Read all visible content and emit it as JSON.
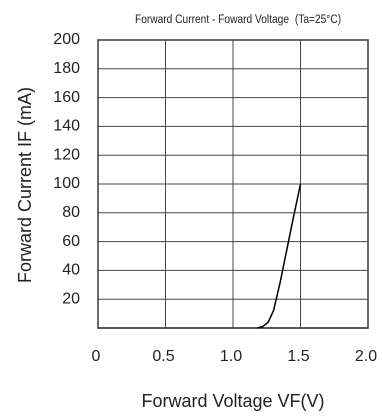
{
  "chart_data": {
    "type": "line",
    "title": "Forward Current - Foward Voltage",
    "condition": "(Ta=25°C)",
    "x_label": "Forward Voltage  VF(V)",
    "y_label": "Forward Current   IF  (mA)",
    "x": [
      1.18,
      1.22,
      1.26,
      1.3,
      1.35,
      1.4,
      1.45,
      1.5
    ],
    "series": [
      {
        "color": "#000000",
        "values": [
          0,
          1,
          4,
          12,
          32,
          55,
          78,
          100
        ]
      }
    ],
    "xlim": [
      0,
      2.0
    ],
    "xticks": [
      0,
      0.5,
      {
        "value": 1.0,
        "label": "1.0"
      },
      1.5,
      {
        "value": 2.0,
        "label": "2.0"
      }
    ],
    "ylim": [
      0,
      200
    ],
    "yticks": [
      20,
      40,
      60,
      80,
      100,
      120,
      140,
      160,
      180,
      200
    ],
    "grid": true
  }
}
